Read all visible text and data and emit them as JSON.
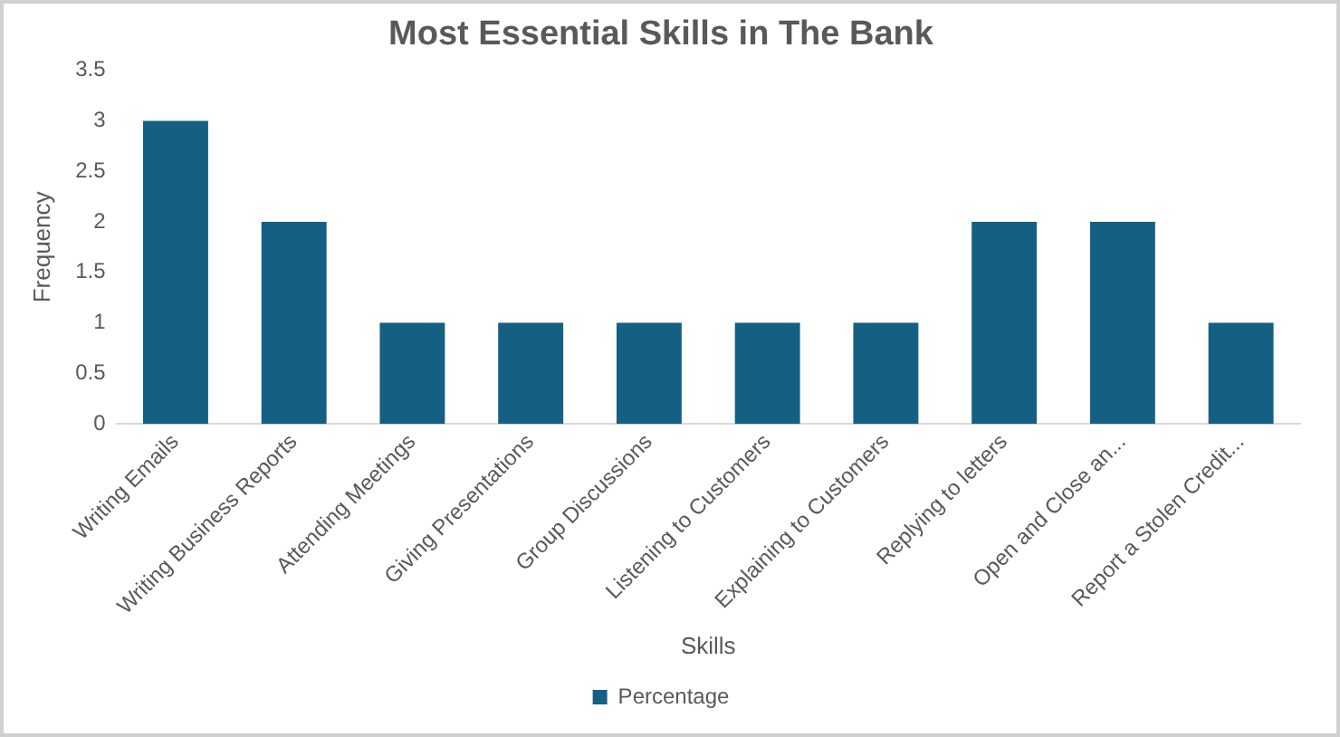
{
  "chart_data": {
    "type": "bar",
    "title": "Most Essential Skills in The Bank",
    "xlabel": "Skills",
    "ylabel": "Frequency",
    "categories": [
      "Writing Emails",
      "Writing Business Reports",
      "Attending Meetings",
      "Giving Presentations",
      "Group Discussions",
      "Listening to Customers",
      "Explaining to Customers",
      "Replying to letters",
      "Open and Close an...",
      "Report a Stolen Credit..."
    ],
    "series": [
      {
        "name": "Percentage",
        "color": "#156082",
        "values": [
          3,
          2,
          1,
          1,
          1,
          1,
          1,
          2,
          2,
          1
        ]
      }
    ],
    "ylim": [
      0,
      3.5
    ],
    "yticks": [
      0,
      0.5,
      1,
      1.5,
      2,
      2.5,
      3,
      3.5
    ],
    "grid": false,
    "legend": "bottom"
  }
}
